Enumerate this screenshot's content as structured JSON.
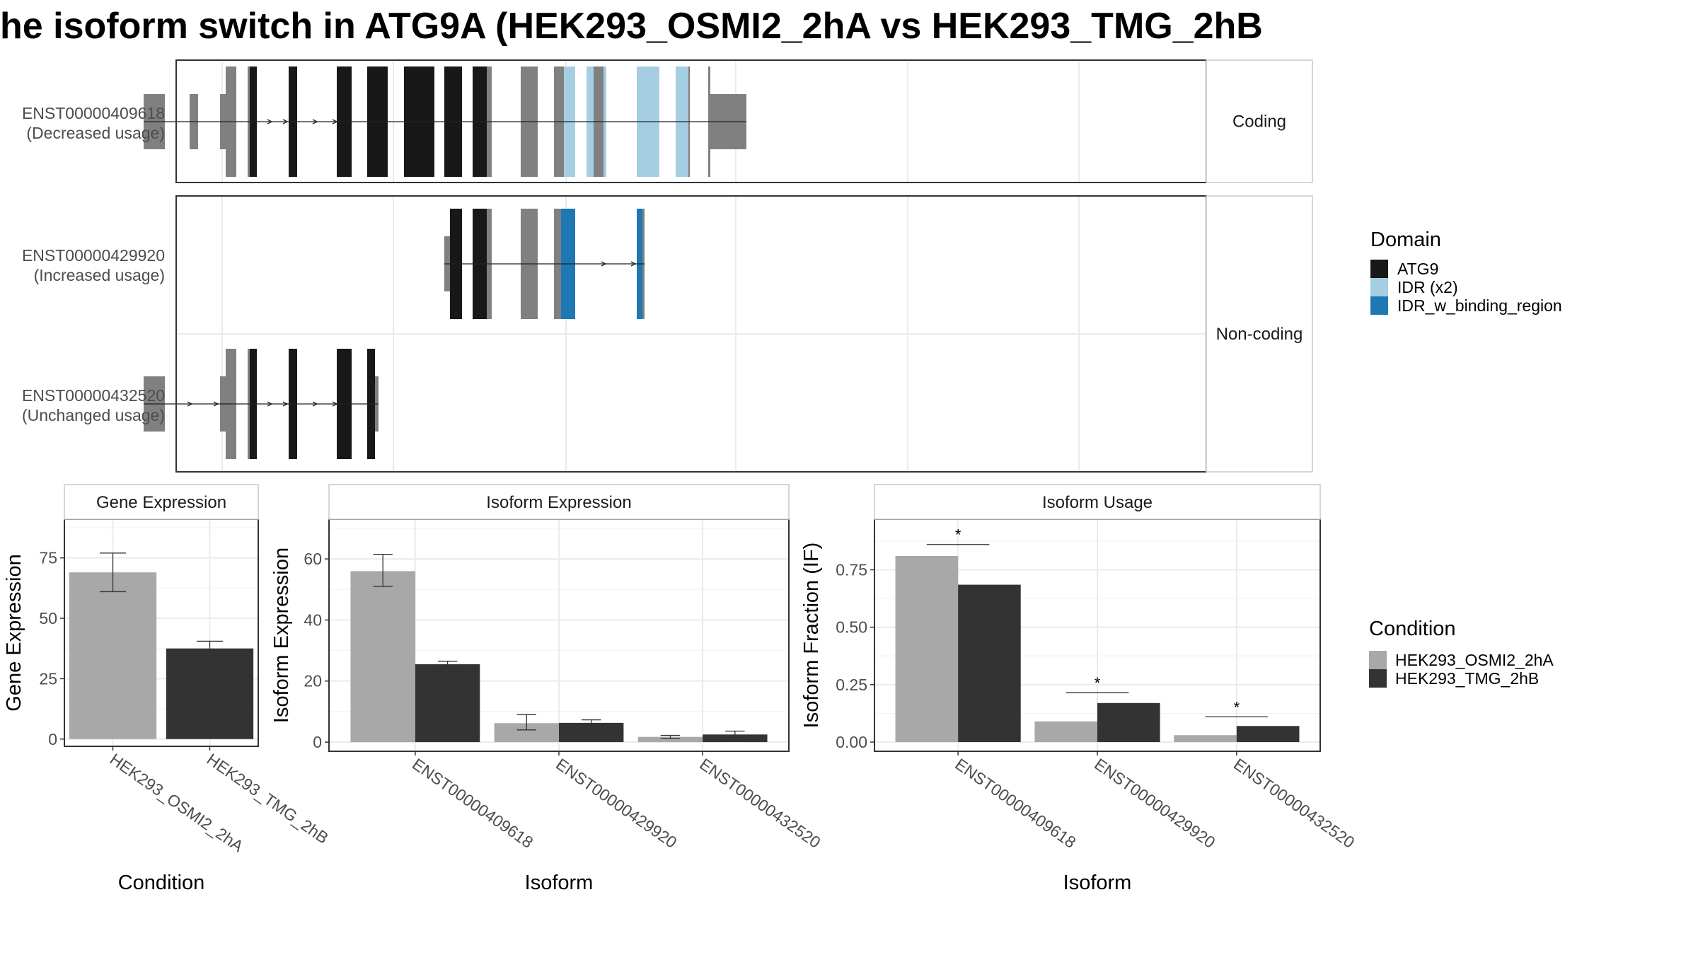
{
  "title": "he isoform switch in ATG9A (HEK293_OSMI2_2hA vs HEK293_TMG_2hB",
  "colors": {
    "atg9": "#181818",
    "idr": "#a6cee3",
    "idr_binding": "#1f78b4",
    "other_exon": "#808080",
    "cond1": "#a8a8a8",
    "cond2": "#333333",
    "grid": "#ebebeb",
    "panel_border": "#333333",
    "strip_border": "#c8c8c8"
  },
  "structure": {
    "facets": [
      {
        "label": "Coding",
        "isoforms": [
          "ENST00000409618"
        ]
      },
      {
        "label": "Non-coding",
        "isoforms": [
          "ENST00000429920",
          "ENST00000432520"
        ]
      }
    ],
    "isoforms": [
      {
        "id": "ENST00000409618",
        "label_line1": "ENST00000409618",
        "label_line2": "(Decreased usage)",
        "line": [
          203,
          1055
        ],
        "arrows": [
          384,
          406,
          448,
          476
        ],
        "exons": [
          {
            "s": 203,
            "e": 233,
            "h": "s",
            "d": "other"
          },
          {
            "s": 268,
            "e": 280,
            "h": "s",
            "d": "other"
          },
          {
            "s": 311,
            "e": 319,
            "h": "s",
            "d": "other"
          },
          {
            "s": 319,
            "e": 334,
            "h": "t",
            "d": "other"
          },
          {
            "s": 350,
            "e": 353,
            "h": "t",
            "d": "other"
          },
          {
            "s": 353,
            "e": 363,
            "h": "t",
            "d": "atg9"
          },
          {
            "s": 408,
            "e": 420,
            "h": "t",
            "d": "atg9"
          },
          {
            "s": 476,
            "e": 497,
            "h": "t",
            "d": "atg9"
          },
          {
            "s": 519,
            "e": 548,
            "h": "t",
            "d": "atg9"
          },
          {
            "s": 571,
            "e": 614,
            "h": "t",
            "d": "atg9"
          },
          {
            "s": 628,
            "e": 653,
            "h": "t",
            "d": "atg9"
          },
          {
            "s": 668,
            "e": 688,
            "h": "t",
            "d": "atg9"
          },
          {
            "s": 688,
            "e": 695,
            "h": "t",
            "d": "other"
          },
          {
            "s": 736,
            "e": 760,
            "h": "t",
            "d": "other"
          },
          {
            "s": 783,
            "e": 797,
            "h": "t",
            "d": "other"
          },
          {
            "s": 797,
            "e": 813,
            "h": "t",
            "d": "idr"
          },
          {
            "s": 829,
            "e": 839,
            "h": "t",
            "d": "idr"
          },
          {
            "s": 839,
            "e": 853,
            "h": "t",
            "d": "other"
          },
          {
            "s": 853,
            "e": 857,
            "h": "t",
            "d": "idr"
          },
          {
            "s": 900,
            "e": 932,
            "h": "t",
            "d": "idr"
          },
          {
            "s": 955,
            "e": 973,
            "h": "t",
            "d": "idr"
          },
          {
            "s": 973,
            "e": 975,
            "h": "t",
            "d": "other"
          },
          {
            "s": 1001,
            "e": 1004,
            "h": "t",
            "d": "other"
          },
          {
            "s": 1004,
            "e": 1055,
            "h": "s",
            "d": "other"
          }
        ]
      },
      {
        "id": "ENST00000429920",
        "label_line1": "ENST00000429920",
        "label_line2": "(Increased usage)",
        "line": [
          628,
          911
        ],
        "arrows": [
          856,
          898
        ],
        "exons": [
          {
            "s": 628,
            "e": 636,
            "h": "s",
            "d": "other"
          },
          {
            "s": 636,
            "e": 653,
            "h": "t",
            "d": "atg9"
          },
          {
            "s": 668,
            "e": 688,
            "h": "t",
            "d": "atg9"
          },
          {
            "s": 688,
            "e": 695,
            "h": "t",
            "d": "other"
          },
          {
            "s": 736,
            "e": 760,
            "h": "t",
            "d": "other"
          },
          {
            "s": 783,
            "e": 793,
            "h": "t",
            "d": "other"
          },
          {
            "s": 793,
            "e": 813,
            "h": "t",
            "d": "idr_binding"
          },
          {
            "s": 900,
            "e": 908,
            "h": "t",
            "d": "idr_binding"
          },
          {
            "s": 908,
            "e": 911,
            "h": "t",
            "d": "other"
          }
        ]
      },
      {
        "id": "ENST00000432520",
        "label_line1": "ENST00000432520",
        "label_line2": "(Unchanged usage)",
        "line": [
          203,
          535
        ],
        "arrows": [
          271,
          308,
          384,
          406,
          448,
          476
        ],
        "exons": [
          {
            "s": 203,
            "e": 233,
            "h": "s",
            "d": "other"
          },
          {
            "s": 311,
            "e": 319,
            "h": "s",
            "d": "other"
          },
          {
            "s": 319,
            "e": 334,
            "h": "t",
            "d": "other"
          },
          {
            "s": 350,
            "e": 353,
            "h": "t",
            "d": "other"
          },
          {
            "s": 353,
            "e": 363,
            "h": "t",
            "d": "atg9"
          },
          {
            "s": 408,
            "e": 420,
            "h": "t",
            "d": "atg9"
          },
          {
            "s": 476,
            "e": 497,
            "h": "t",
            "d": "atg9"
          },
          {
            "s": 519,
            "e": 530,
            "h": "t",
            "d": "atg9"
          },
          {
            "s": 530,
            "e": 535,
            "h": "s",
            "d": "other"
          }
        ]
      }
    ],
    "domain_legend": {
      "title": "Domain",
      "items": [
        {
          "label": "ATG9",
          "key": "atg9"
        },
        {
          "label": "IDR (x2)",
          "key": "idr"
        },
        {
          "label": "IDR_w_binding_region",
          "key": "idr_binding"
        }
      ]
    }
  },
  "condition_legend": {
    "title": "Condition",
    "items": [
      {
        "label": "HEK293_OSMI2_2hA",
        "key": "cond1"
      },
      {
        "label": "HEK293_TMG_2hB",
        "key": "cond2"
      }
    ]
  },
  "chart_data": [
    {
      "type": "bar",
      "title": "Gene Expression",
      "xlabel": "Condition",
      "ylabel": "Gene Expression",
      "categories": [
        "HEK293_OSMI2_2hA",
        "HEK293_TMG_2hB"
      ],
      "values": [
        69,
        37.5
      ],
      "error": [
        [
          61,
          77
        ],
        [
          34.5,
          40.5
        ]
      ],
      "ylim": [
        -3,
        91
      ],
      "yticks": [
        0,
        25,
        50,
        75
      ]
    },
    {
      "type": "bar",
      "title": "Isoform Expression",
      "xlabel": "Isoform",
      "ylabel": "Isoform Expression",
      "categories": [
        "ENST00000409618",
        "ENST00000429920",
        "ENST00000432520"
      ],
      "series": [
        {
          "name": "HEK293_OSMI2_2hA",
          "values": [
            56,
            6.2,
            1.7
          ],
          "error": [
            [
              51,
              61.5
            ],
            [
              4,
              9
            ],
            [
              1.2,
              2.2
            ]
          ]
        },
        {
          "name": "HEK293_TMG_2hB",
          "values": [
            25.5,
            6.3,
            2.5
          ],
          "error": [
            [
              24.5,
              26.5
            ],
            [
              5.5,
              7.3
            ],
            [
              1.6,
              3.6
            ]
          ]
        }
      ],
      "ylim": [
        -3,
        73
      ],
      "yticks": [
        0,
        20,
        40,
        60
      ]
    },
    {
      "type": "bar",
      "title": "Isoform Usage",
      "xlabel": "Isoform",
      "ylabel": "Isoform Fraction (IF)",
      "categories": [
        "ENST00000409618",
        "ENST00000429920",
        "ENST00000432520"
      ],
      "series": [
        {
          "name": "HEK293_OSMI2_2hA",
          "values": [
            0.81,
            0.09,
            0.03
          ]
        },
        {
          "name": "HEK293_TMG_2hB",
          "values": [
            0.685,
            0.17,
            0.07
          ]
        }
      ],
      "significance": [
        {
          "label": "*",
          "y": 0.86
        },
        {
          "label": "*",
          "y": 0.215
        },
        {
          "label": "*",
          "y": 0.11
        }
      ],
      "ylim": [
        -0.04,
        0.97
      ],
      "yticks": [
        "0.00",
        "0.25",
        "0.50",
        "0.75"
      ]
    }
  ]
}
